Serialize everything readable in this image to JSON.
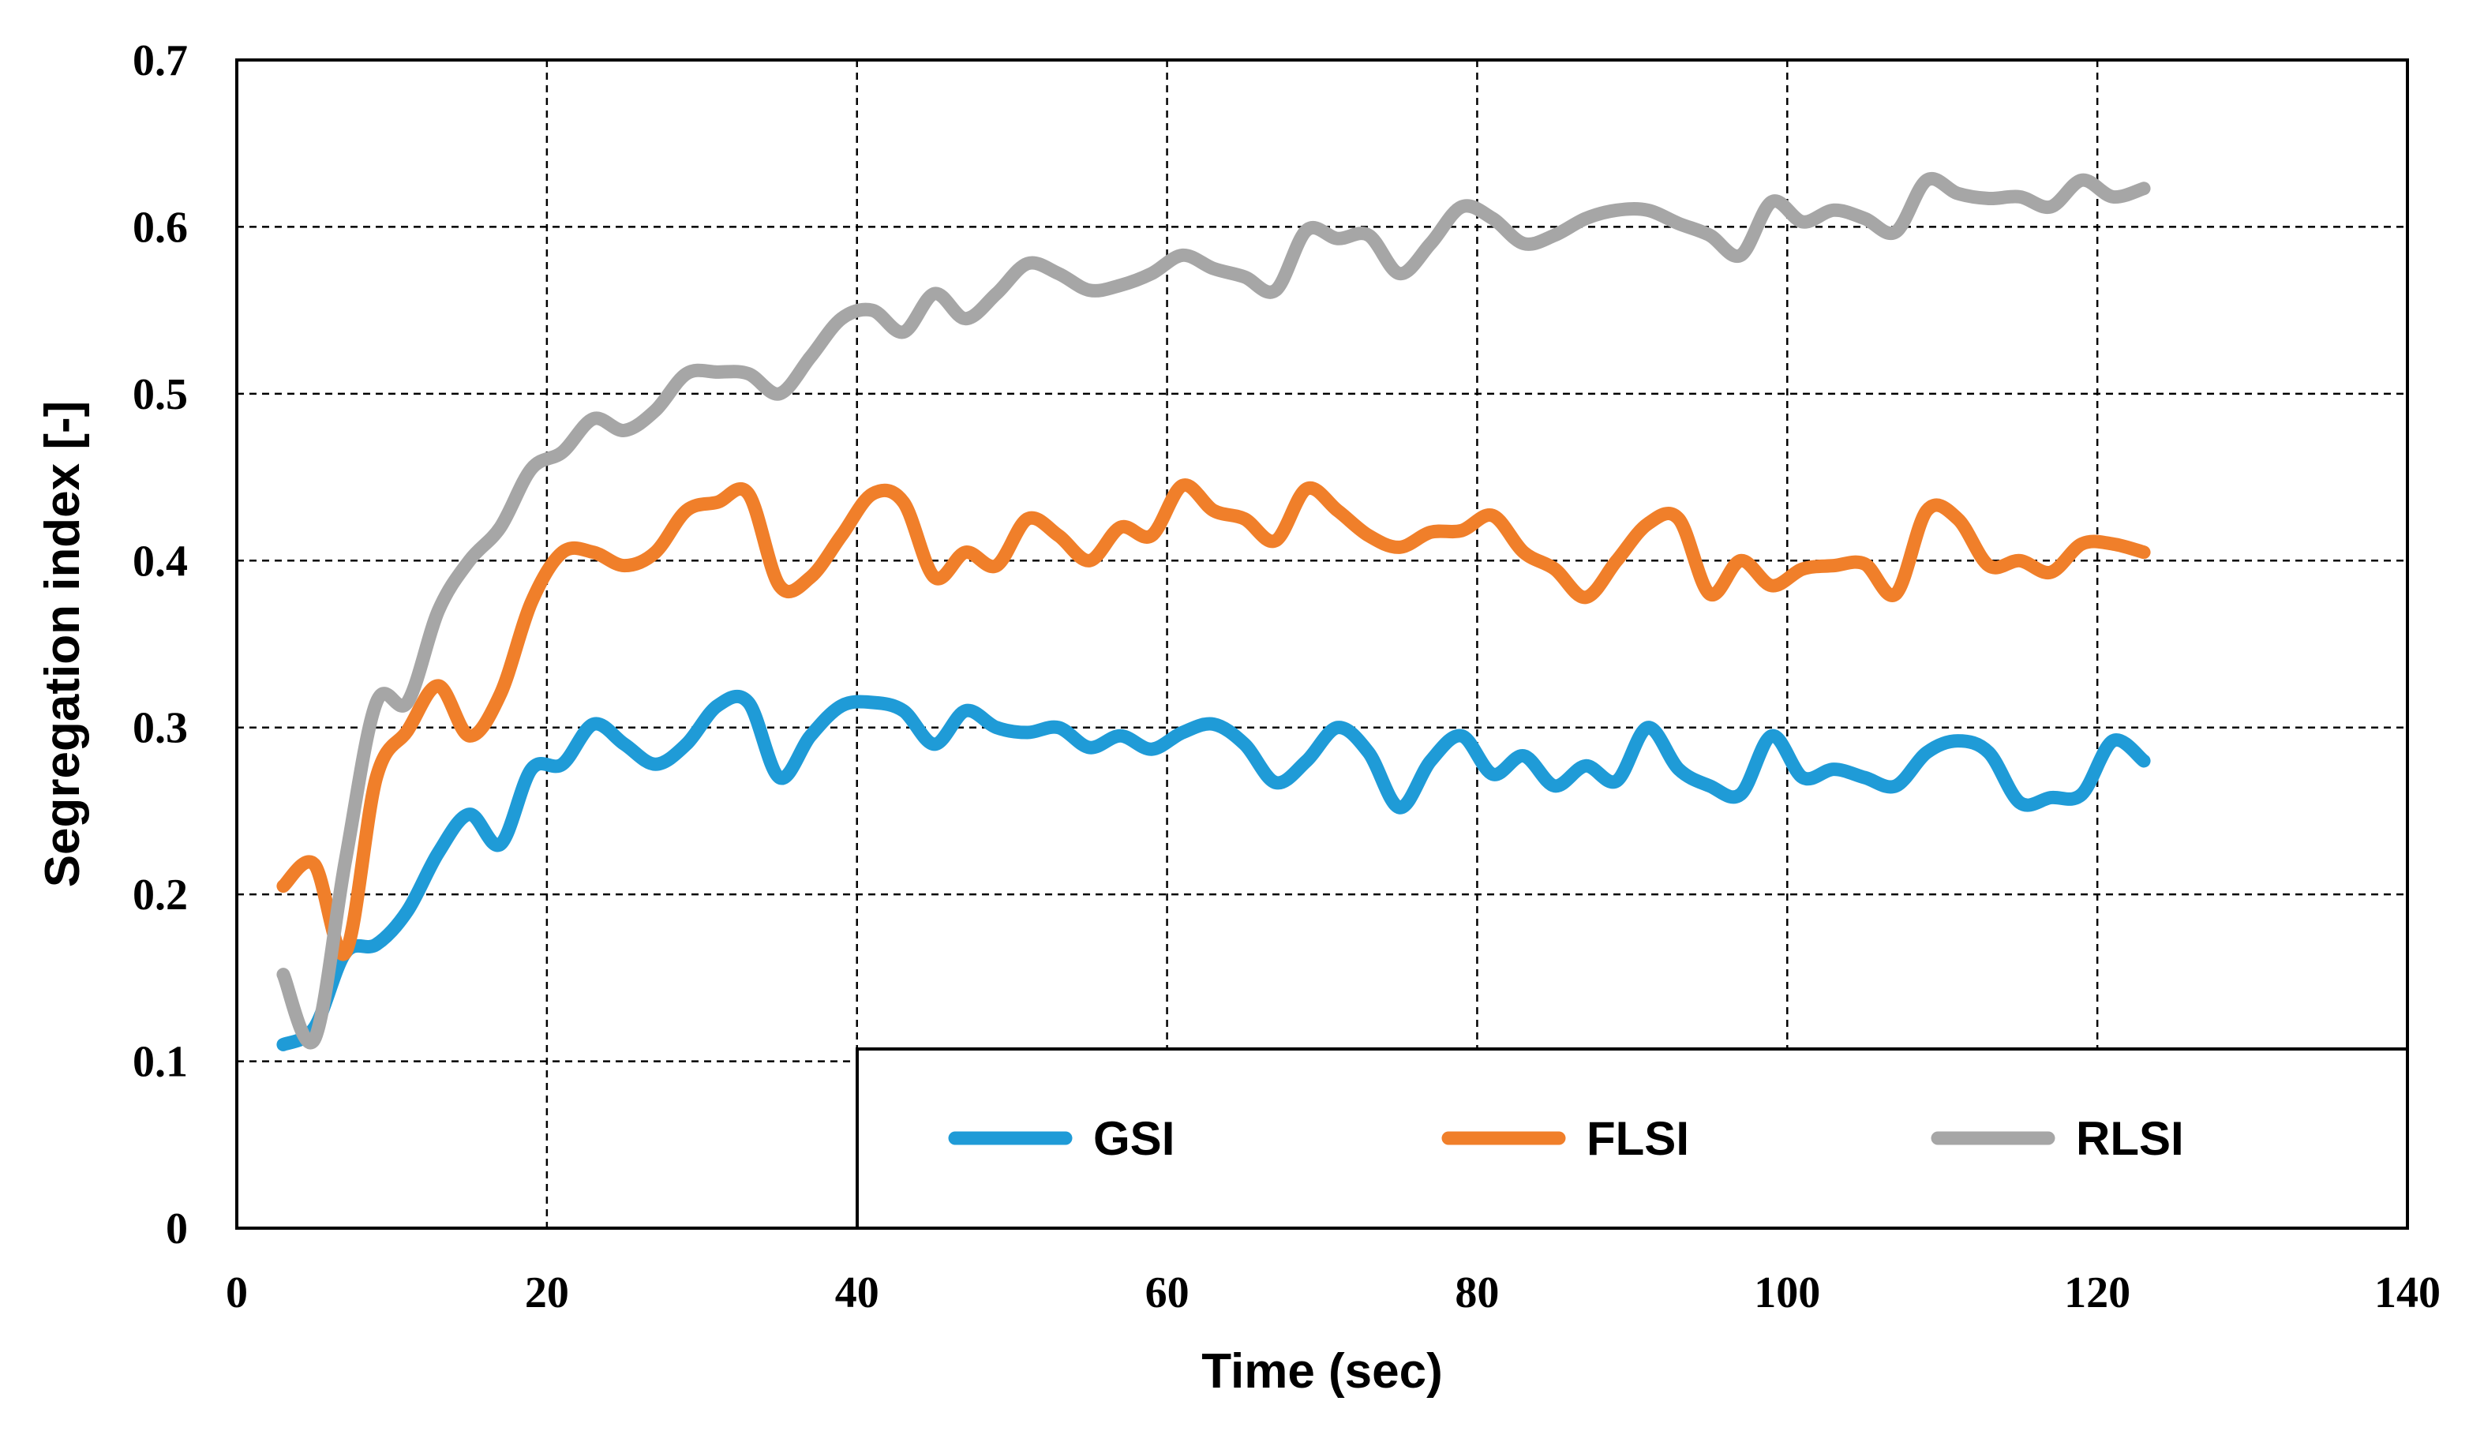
{
  "chart_data": {
    "type": "line",
    "title": "",
    "xlabel": "Time (sec)",
    "ylabel": "Segregation index [-]",
    "xlim": [
      0,
      140
    ],
    "ylim": [
      0,
      0.7
    ],
    "xticks": [
      0,
      20,
      40,
      60,
      80,
      100,
      120,
      140
    ],
    "xtick_labels": [
      "0",
      "20",
      "40",
      "60",
      "80",
      "100",
      "120",
      "140"
    ],
    "yticks": [
      0,
      0.1,
      0.2,
      0.3,
      0.4,
      0.5,
      0.6,
      0.7
    ],
    "ytick_labels": [
      "0",
      "0.1",
      "0.2",
      "0.3",
      "0.4",
      "0.5",
      "0.6",
      "0.7"
    ],
    "grid": true,
    "legend_position": "bottom-right",
    "series": [
      {
        "name": "GSI",
        "color": "#1f9bd7",
        "x": [
          3,
          5,
          7,
          9,
          11,
          13,
          15,
          17,
          19,
          21,
          23,
          25,
          27,
          29,
          31,
          33,
          35,
          37,
          39,
          41,
          43,
          45,
          47,
          49,
          51,
          53,
          55,
          57,
          59,
          61,
          63,
          65,
          67,
          69,
          71,
          73,
          75,
          77,
          79,
          81,
          83,
          85,
          87,
          89,
          91,
          93,
          95,
          97,
          99,
          101,
          103,
          105,
          107,
          109,
          111,
          113,
          115,
          117,
          119,
          121,
          123
        ],
        "values": [
          0.11,
          0.12,
          0.165,
          0.17,
          0.19,
          0.225,
          0.248,
          0.23,
          0.275,
          0.278,
          0.302,
          0.29,
          0.278,
          0.29,
          0.313,
          0.315,
          0.27,
          0.295,
          0.313,
          0.315,
          0.31,
          0.29,
          0.31,
          0.3,
          0.297,
          0.3,
          0.288,
          0.295,
          0.287,
          0.297,
          0.302,
          0.29,
          0.267,
          0.28,
          0.3,
          0.285,
          0.252,
          0.28,
          0.295,
          0.272,
          0.283,
          0.265,
          0.277,
          0.268,
          0.3,
          0.275,
          0.265,
          0.26,
          0.295,
          0.27,
          0.275,
          0.27,
          0.265,
          0.285,
          0.292,
          0.285,
          0.255,
          0.258,
          0.26,
          0.292,
          0.28
        ]
      },
      {
        "name": "FLSI",
        "color": "#f07f2a",
        "x": [
          3,
          5,
          7,
          9,
          11,
          13,
          15,
          17,
          19,
          21,
          23,
          25,
          27,
          29,
          31,
          33,
          35,
          37,
          39,
          41,
          43,
          45,
          47,
          49,
          51,
          53,
          55,
          57,
          59,
          61,
          63,
          65,
          67,
          69,
          71,
          73,
          75,
          77,
          79,
          81,
          83,
          85,
          87,
          89,
          91,
          93,
          95,
          97,
          99,
          101,
          103,
          105,
          107,
          109,
          111,
          113,
          115,
          117,
          119,
          121,
          123
        ],
        "values": [
          0.205,
          0.218,
          0.165,
          0.27,
          0.298,
          0.325,
          0.295,
          0.32,
          0.375,
          0.405,
          0.405,
          0.397,
          0.405,
          0.43,
          0.435,
          0.44,
          0.385,
          0.39,
          0.415,
          0.44,
          0.435,
          0.39,
          0.405,
          0.397,
          0.425,
          0.415,
          0.4,
          0.42,
          0.415,
          0.445,
          0.43,
          0.425,
          0.412,
          0.443,
          0.43,
          0.415,
          0.408,
          0.417,
          0.418,
          0.427,
          0.405,
          0.395,
          0.378,
          0.4,
          0.422,
          0.425,
          0.38,
          0.4,
          0.385,
          0.395,
          0.397,
          0.398,
          0.38,
          0.43,
          0.425,
          0.397,
          0.4,
          0.393,
          0.41,
          0.41,
          0.405
        ]
      },
      {
        "name": "RLSI",
        "color": "#a6a6a6",
        "x": [
          3,
          5,
          7,
          9,
          11,
          13,
          15,
          17,
          19,
          21,
          23,
          25,
          27,
          29,
          31,
          33,
          35,
          37,
          39,
          41,
          43,
          45,
          47,
          49,
          51,
          53,
          55,
          57,
          59,
          61,
          63,
          65,
          67,
          69,
          71,
          73,
          75,
          77,
          79,
          81,
          83,
          85,
          87,
          89,
          91,
          93,
          95,
          97,
          99,
          101,
          103,
          105,
          107,
          109,
          111,
          113,
          115,
          117,
          119,
          121,
          123
        ],
        "values": [
          0.152,
          0.113,
          0.22,
          0.315,
          0.315,
          0.37,
          0.4,
          0.42,
          0.455,
          0.465,
          0.485,
          0.478,
          0.49,
          0.512,
          0.513,
          0.512,
          0.5,
          0.522,
          0.545,
          0.55,
          0.537,
          0.56,
          0.545,
          0.56,
          0.578,
          0.572,
          0.562,
          0.565,
          0.572,
          0.583,
          0.575,
          0.57,
          0.562,
          0.598,
          0.593,
          0.595,
          0.572,
          0.59,
          0.612,
          0.605,
          0.59,
          0.595,
          0.605,
          0.61,
          0.61,
          0.602,
          0.595,
          0.583,
          0.615,
          0.603,
          0.61,
          0.605,
          0.597,
          0.628,
          0.62,
          0.617,
          0.618,
          0.612,
          0.628,
          0.618,
          0.623
        ]
      }
    ]
  }
}
